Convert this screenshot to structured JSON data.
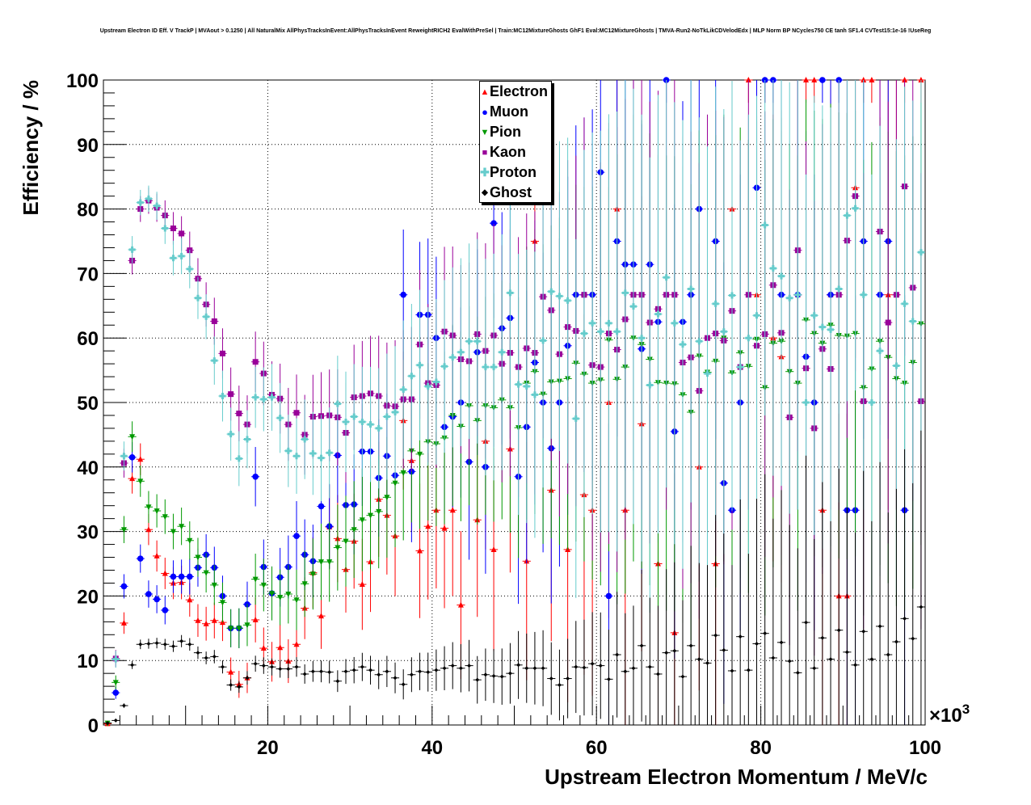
{
  "chart_data": {
    "type": "scatter",
    "title": "Upstream Electron ID Eff. V TrackP | MVAout > 0.1250 | All NaturalMix AllPhysTracksInEvent:AllPhysTracksInEvent ReweightRICH2 EvalWithPreSel | Train:MC12MixtureGhosts GhF1 Eval:MC12MixtureGhosts | TMVA-Run2-NoTkLikCDVelodEdx | MLP Norm BP NCycles750 CE tanh SF1.4 CVTest15:1e-16 !UseReg",
    "xlabel": "Upstream Electron Momentum / MeV/c",
    "ylabel": "Efficiency / %",
    "x_multiplier": "×10",
    "x_multiplier_exp": "3",
    "xlim": [
      0,
      100
    ],
    "ylim": [
      0,
      100
    ],
    "grid": true,
    "legend_placement": "top-center",
    "xticks": [
      "20",
      "40",
      "60",
      "80",
      "100"
    ],
    "yticks": [
      "0",
      "10",
      "20",
      "30",
      "40",
      "50",
      "60",
      "70",
      "80",
      "90",
      "100"
    ],
    "x_bin_width": 1,
    "series": [
      {
        "name": "Electron",
        "color": "#ff0000",
        "marker": "triangle-up",
        "values": [
          0.2,
          null,
          15.8,
          38.2,
          41.2,
          30.3,
          26.2,
          23.5,
          22,
          22.1,
          19.4,
          16.2,
          15.7,
          16.2,
          15.9,
          8.2,
          6.3,
          7.3,
          16.3,
          11.9,
          9.8,
          12,
          9.9,
          12.5,
          18.1,
          23.6,
          16.9,
          30.7,
          28.9,
          24.1,
          28.5,
          21.8,
          25.3,
          35,
          32.5,
          29.3,
          47.2,
          41,
          27,
          30.8,
          33.3,
          30.5,
          33.3,
          18.6,
          null,
          31.8,
          44,
          27.2,
          null,
          42.8,
          null,
          25.4,
          75,
          null,
          36.4,
          null,
          27.2,
          null,
          35.7,
          33.3,
          null,
          50,
          80,
          33.3,
          null,
          46.7,
          null,
          25,
          null,
          14.3,
          null,
          null,
          40,
          null,
          25,
          null,
          80,
          null,
          100,
          66.7,
          100,
          60,
          57.1,
          null,
          66.7,
          100,
          100,
          33.3,
          66.7,
          20,
          20,
          83.3,
          100,
          100,
          null,
          66.7,
          66.7,
          100,
          null,
          100
        ]
      },
      {
        "name": "Muon",
        "color": "#0000ff",
        "marker": "circle",
        "values": [
          null,
          5,
          21.5,
          41.5,
          25.8,
          20.3,
          19.5,
          17.8,
          23,
          23,
          23,
          24.4,
          26.4,
          24.4,
          20,
          15,
          15,
          18.7,
          38.5,
          24.5,
          20.4,
          22.9,
          24.5,
          29.3,
          26.4,
          25.4,
          33.9,
          30.8,
          41.8,
          34.1,
          34.2,
          42.4,
          42.4,
          38.3,
          41.7,
          38.7,
          66.7,
          39.3,
          63.6,
          63.6,
          60,
          46.2,
          47.8,
          50,
          40.8,
          57.8,
          40,
          77.8,
          61.5,
          63.1,
          38.5,
          46.2,
          56.2,
          50,
          42.9,
          50,
          58.8,
          66.7,
          66.7,
          66.7,
          85.7,
          20,
          75,
          71.4,
          71.4,
          58.3,
          71.4,
          62.5,
          100,
          45.5,
          62.5,
          66.7,
          80,
          null,
          75,
          37.5,
          33.3,
          50,
          null,
          83.3,
          100,
          100,
          66.7,
          null,
          66.7,
          57.1,
          50,
          100,
          66.7,
          100,
          33.3,
          33.3,
          75,
          null,
          66.7,
          75,
          null,
          33.3,
          null,
          null
        ]
      },
      {
        "name": "Pion",
        "color": "#009900",
        "marker": "triangle-down",
        "values": [
          0.3,
          6.6,
          30.3,
          44.7,
          37.8,
          33.8,
          33.2,
          32.3,
          30,
          30.8,
          28.6,
          26,
          23.6,
          21.7,
          19,
          15,
          15,
          15.5,
          22.6,
          21.7,
          20.4,
          19.8,
          20.3,
          19.4,
          21.9,
          23.4,
          25.3,
          25.3,
          27.5,
          28.5,
          30.3,
          31.8,
          32.5,
          33.1,
          35.3,
          37.5,
          39.1,
          42.5,
          42,
          43.9,
          43.6,
          44.5,
          48,
          46.3,
          49.5,
          47.2,
          49.5,
          49.2,
          50.4,
          49.2,
          46.1,
          53,
          54.8,
          51.3,
          53.2,
          53.3,
          53.7,
          56.1,
          54.4,
          53,
          53.5,
          59.7,
          53.6,
          55.5,
          60,
          59,
          56.7,
          53.1,
          53,
          52.9,
          51.2,
          48.5,
          57.2,
          54.7,
          56.4,
          60,
          54.6,
          57.7,
          55.6,
          59.8,
          52.3,
          59.2,
          59.5,
          54.8,
          53,
          62.8,
          60.7,
          59.2,
          62,
          60.4,
          60.3,
          60.7,
          52.3,
          55.2,
          59.5,
          57,
          53.7,
          53,
          56.2,
          62.2
        ]
      },
      {
        "name": "Kaon",
        "color": "#990099",
        "marker": "square",
        "values": [
          null,
          10.3,
          40.6,
          72,
          80,
          81.3,
          80.2,
          79,
          77,
          76.2,
          73.6,
          69.2,
          65.2,
          62.6,
          57.6,
          51.3,
          48.3,
          46.6,
          56.3,
          54.5,
          51.2,
          50.6,
          46.6,
          48.4,
          45,
          47.8,
          47.9,
          48,
          47.7,
          45.3,
          50.8,
          51,
          51.4,
          51,
          49.5,
          49.4,
          50.5,
          50.5,
          59,
          53,
          52.7,
          61,
          60.4,
          56.7,
          56.4,
          60.6,
          58,
          60.4,
          56,
          57.7,
          55.5,
          58.4,
          57.7,
          66.4,
          64.3,
          57.5,
          61.7,
          61.1,
          66.7,
          55.8,
          55.5,
          60.7,
          58.2,
          62.9,
          66.7,
          66.7,
          62.4,
          64.5,
          66.7,
          66.7,
          56.2,
          57,
          51.8,
          60,
          60.7,
          59.6,
          64.2,
          55.5,
          66.7,
          58.8,
          60.6,
          68.2,
          60.8,
          47.7,
          73.6,
          55.3,
          46,
          58.3,
          55.2,
          66.7,
          75.1,
          82,
          50.2,
          null,
          76.5,
          62.4,
          66.7,
          83.5,
          67.8,
          50.2
        ]
      },
      {
        "name": "Proton",
        "color": "#66cccc",
        "marker": "cross",
        "values": [
          null,
          10.2,
          41.7,
          73.7,
          81,
          81.6,
          80.5,
          77,
          72.4,
          72.7,
          70.7,
          66.2,
          63.3,
          56.5,
          51,
          45.1,
          41.3,
          44.3,
          50.8,
          50.5,
          50.8,
          47.6,
          42.5,
          41.7,
          44.3,
          42.1,
          41.4,
          42.2,
          49.8,
          47,
          47.8,
          47,
          46.6,
          46,
          47.8,
          48.5,
          52,
          54.1,
          55.8,
          52.5,
          53.2,
          55.6,
          57,
          57.8,
          59.5,
          59.5,
          55.5,
          55.5,
          57.8,
          67,
          52.8,
          52.5,
          51.2,
          59.6,
          67.2,
          66.5,
          65.8,
          47.5,
          60.7,
          62.3,
          61,
          62.3,
          61,
          67,
          64.9,
          60,
          52.7,
          63.7,
          69.4,
          62.3,
          59,
          67.6,
          59.5,
          54.5,
          65.3,
          61,
          66.6,
          55.5,
          60,
          63.5,
          77.5,
          70.8,
          69.6,
          66.2,
          66.7,
          50,
          63.5,
          61.7,
          61.3,
          67.6,
          79,
          80.1,
          66.7,
          50,
          58,
          null,
          55.7,
          65.3,
          62.6,
          73.3
        ]
      },
      {
        "name": "Ghost",
        "color": "#000000",
        "marker": "diamond",
        "values": [
          0.3,
          0.7,
          3,
          9.3,
          12.5,
          12.6,
          12.7,
          12.5,
          12.2,
          13,
          12.5,
          11.2,
          10.4,
          10.6,
          9,
          6.2,
          5.9,
          7.3,
          9.5,
          9.2,
          9,
          8.7,
          8.7,
          9,
          7.9,
          8.3,
          8.3,
          8.2,
          6.8,
          8.3,
          8.5,
          9,
          8.5,
          7.8,
          8.3,
          7.3,
          6.3,
          7.8,
          8.3,
          8.2,
          8.5,
          8.8,
          9.2,
          8.8,
          9.2,
          7,
          7.8,
          7.6,
          7.5,
          8,
          9.3,
          8.8,
          8.8,
          8.8,
          7.2,
          6.2,
          7.2,
          9,
          8.9,
          9.5,
          9.2,
          7.1,
          10.9,
          8.3,
          8.8,
          12.3,
          9,
          7.9,
          11.2,
          11.5,
          7.5,
          12.3,
          10.2,
          9.6,
          13.9,
          11.6,
          8.4,
          13.7,
          8.5,
          12.6,
          14.2,
          10.4,
          12.8,
          9.9,
          8.1,
          15.9,
          8.8,
          13.5,
          10.2,
          14.7,
          11.3,
          9.3,
          14.5,
          10.2,
          15.3,
          10.9,
          12.9,
          16.5,
          13.4,
          18.3
        ]
      }
    ]
  }
}
